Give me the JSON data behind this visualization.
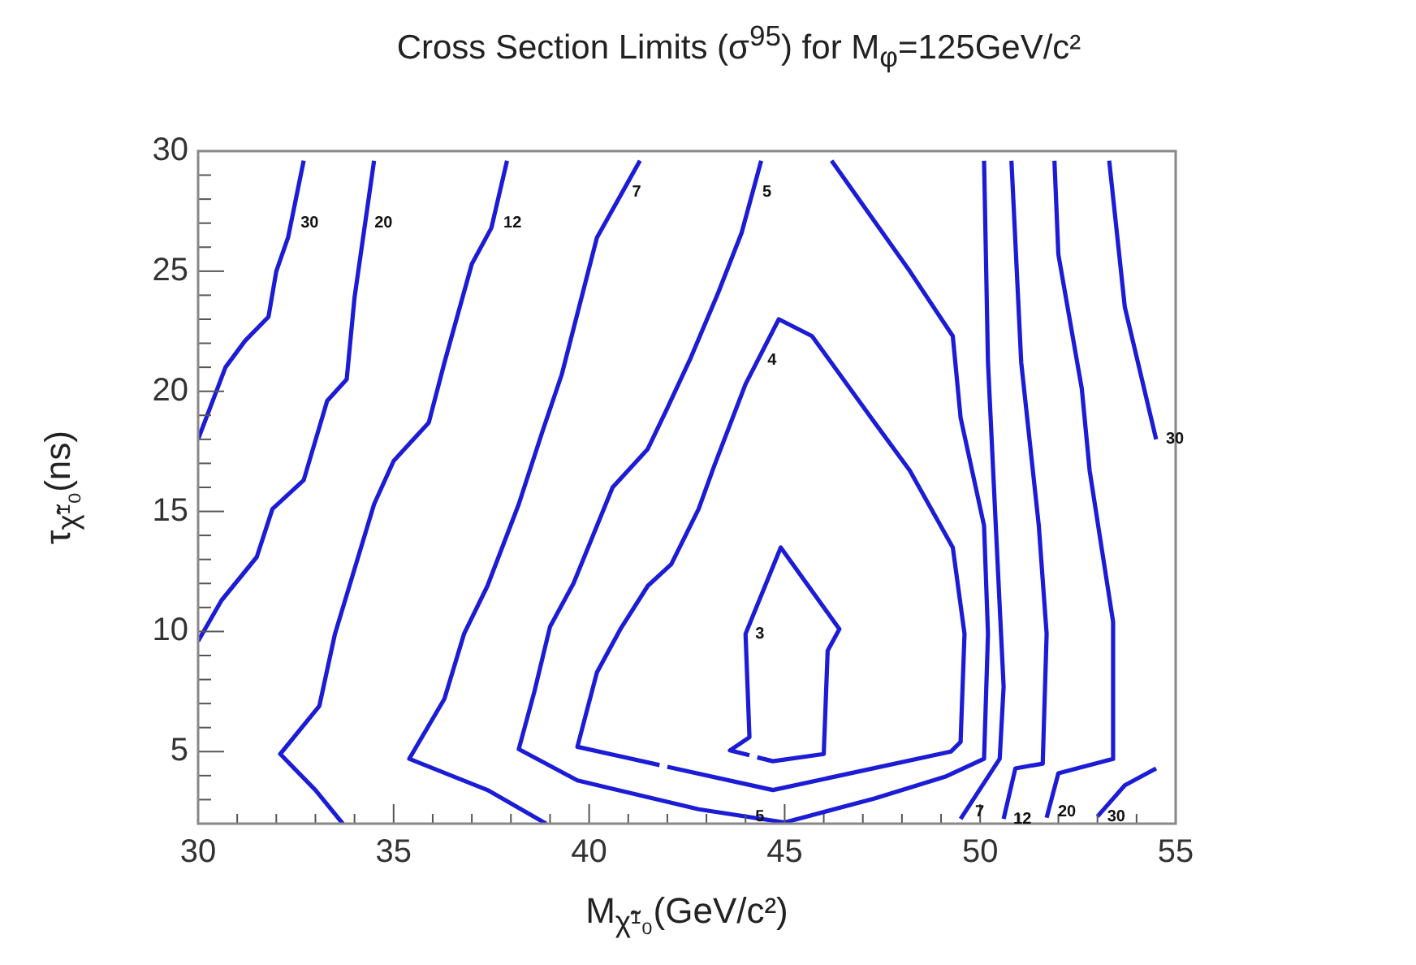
{
  "chart_data": {
    "type": "line",
    "title": "Cross Section Limits (σ$^{95}$) for M$_{φ}$=125GeV/c²",
    "xlabel": "M$_{χ̃¹₀}$(GeV/c²)",
    "ylabel": "τ$_{χ̃¹₀}$(ns)",
    "xlim": [
      30,
      55
    ],
    "ylim": [
      2,
      30
    ],
    "xticks": [
      30,
      {
        "value": 31,
        "label": null
      },
      {
        "value": 32,
        "label": null
      },
      {
        "value": 33,
        "label": null
      },
      {
        "value": 34,
        "label": null
      },
      35,
      {
        "value": 36,
        "label": null
      },
      {
        "value": 37,
        "label": null
      },
      {
        "value": 38,
        "label": null
      },
      {
        "value": 39,
        "label": null
      },
      40,
      {
        "value": 41,
        "label": null
      },
      {
        "value": 42,
        "label": null
      },
      {
        "value": 43,
        "label": null
      },
      {
        "value": 44,
        "label": null
      },
      45,
      {
        "value": 46,
        "label": null
      },
      {
        "value": 47,
        "label": null
      },
      {
        "value": 48,
        "label": null
      },
      {
        "value": 49,
        "label": null
      },
      50,
      {
        "value": 51,
        "label": null
      },
      {
        "value": 52,
        "label": null
      },
      {
        "value": 53,
        "label": null
      },
      {
        "value": 54,
        "label": null
      },
      55
    ],
    "yticks": [
      {
        "value": 3,
        "label": null
      },
      {
        "value": 4,
        "label": null
      },
      5,
      {
        "value": 6,
        "label": null
      },
      {
        "value": 7,
        "label": null
      },
      {
        "value": 8,
        "label": null
      },
      {
        "value": 9,
        "label": null
      },
      10,
      {
        "value": 11,
        "label": null
      },
      {
        "value": 12,
        "label": null
      },
      {
        "value": 13,
        "label": null
      },
      {
        "value": 14,
        "label": null
      },
      15,
      {
        "value": 16,
        "label": null
      },
      {
        "value": 17,
        "label": null
      },
      {
        "value": 18,
        "label": null
      },
      {
        "value": 19,
        "label": null
      },
      20,
      {
        "value": 21,
        "label": null
      },
      {
        "value": 22,
        "label": null
      },
      {
        "value": 23,
        "label": null
      },
      {
        "value": 24,
        "label": null
      },
      25,
      {
        "value": 26,
        "label": null
      },
      {
        "value": 27,
        "label": null
      },
      {
        "value": 28,
        "label": null
      },
      {
        "value": 29,
        "label": null
      },
      30
    ],
    "grid": false,
    "legend": false,
    "marker": "none",
    "line_style": "solid",
    "series": [
      {
        "color": "#1c1cd6",
        "x": [
          32.7,
          32.5,
          32.3,
          32.0,
          31.8,
          31.2,
          30.7,
          30.0
        ],
        "values": [
          29.6,
          28.0,
          26.4,
          25.0,
          23.1,
          22.1,
          21.0,
          18.0
        ]
      },
      {
        "color": "#1c1cd6",
        "x": [
          30.0,
          30.6,
          31.5,
          31.9,
          32.7,
          33.3,
          33.8,
          34.0,
          34.5
        ],
        "values": [
          9.6,
          11.3,
          13.1,
          15.1,
          16.3,
          19.6,
          20.5,
          23.9,
          29.6
        ]
      },
      {
        "color": "#1c1cd6",
        "x": [
          33.7,
          33.0,
          32.1,
          33.1,
          33.5,
          34.5,
          35.0,
          35.9,
          36.3,
          37.0,
          37.5,
          37.9
        ],
        "values": [
          2.0,
          3.4,
          4.9,
          6.9,
          9.9,
          15.3,
          17.1,
          18.7,
          21.2,
          25.3,
          26.8,
          29.6
        ]
      },
      {
        "color": "#1c1cd6",
        "x": [
          38.9,
          37.4,
          35.4,
          36.3,
          36.8,
          37.4,
          38.2,
          38.8,
          39.3,
          40.2,
          41.3
        ],
        "values": [
          2.0,
          3.4,
          4.7,
          7.2,
          9.9,
          11.9,
          15.3,
          18.3,
          20.7,
          26.4,
          29.6
        ]
      },
      {
        "color": "#1c1cd6",
        "x": [
          44.4,
          43.9,
          43.3,
          42.6,
          42.0,
          41.5,
          40.6,
          39.6,
          39.0,
          38.6,
          38.2,
          39.7,
          42.8,
          45.0,
          47.3,
          49.1,
          50.1,
          50.2,
          50.1,
          49.5,
          49.3,
          48.2,
          46.2
        ],
        "values": [
          29.6,
          26.6,
          24.1,
          21.4,
          19.3,
          17.6,
          16.0,
          12.0,
          10.2,
          7.5,
          5.1,
          3.8,
          2.6,
          2.05,
          3.05,
          3.95,
          4.7,
          9.9,
          14.4,
          18.9,
          22.3,
          25.0,
          29.6
        ]
      },
      {
        "color": "#1c1cd6",
        "x": [
          42.0,
          44.7,
          49.25,
          49.5,
          49.6,
          49.3,
          48.2,
          47.3,
          45.7,
          44.85,
          44.0,
          43.2,
          42.8,
          42.1,
          41.5,
          40.8,
          40.2,
          39.7,
          41.8
        ],
        "values": [
          4.37,
          3.4,
          5.0,
          5.4,
          9.9,
          13.5,
          16.7,
          18.7,
          22.3,
          23.0,
          20.3,
          16.9,
          15.1,
          12.8,
          11.9,
          10.1,
          8.3,
          5.2,
          4.44
        ]
      },
      {
        "color": "#1c1cd6",
        "x": [
          44.3,
          44.7,
          46.0,
          46.1,
          46.4,
          44.9,
          44.0,
          44.1,
          43.6,
          44.1
        ],
        "values": [
          4.76,
          4.6,
          4.9,
          9.2,
          10.1,
          13.5,
          9.9,
          5.6,
          5.05,
          4.85
        ]
      },
      {
        "color": "#1c1cd6",
        "x": [
          50.1,
          50.2,
          50.4,
          50.6,
          50.5,
          49.5
        ],
        "values": [
          29.6,
          21.2,
          14.4,
          7.7,
          4.7,
          2.2
        ]
      },
      {
        "color": "#1c1cd6",
        "x": [
          50.8,
          51.05,
          51.5,
          51.7,
          51.6,
          50.9,
          50.6
        ],
        "values": [
          29.6,
          21.2,
          14.4,
          9.9,
          4.5,
          4.3,
          2.2
        ]
      },
      {
        "color": "#1c1cd6",
        "x": [
          51.9,
          52.0,
          52.6,
          52.8,
          53.4,
          53.4,
          52.0,
          51.7
        ],
        "values": [
          29.6,
          25.7,
          20.1,
          16.7,
          10.4,
          4.7,
          4.1,
          2.25
        ]
      },
      {
        "color": "#1c1cd6",
        "x": [
          53.3,
          53.7,
          54.5
        ],
        "values": [
          29.6,
          23.5,
          18.0
        ]
      },
      {
        "color": "#1c1cd6",
        "x": [
          53.0,
          53.7,
          54.5
        ],
        "values": [
          2.3,
          3.6,
          4.3
        ]
      }
    ],
    "annotations": [
      {
        "text": "30",
        "x": 32.37,
        "y": 27.0
      },
      {
        "text": "20",
        "x": 34.26,
        "y": 27.0
      },
      {
        "text": "12",
        "x": 37.56,
        "y": 27.0
      },
      {
        "text": "7",
        "x": 40.85,
        "y": 28.3
      },
      {
        "text": "5",
        "x": 44.18,
        "y": 28.3
      },
      {
        "text": "4",
        "x": 44.31,
        "y": 21.3
      },
      {
        "text": "3",
        "x": 44.0,
        "y": 9.9
      },
      {
        "text": "30",
        "x": 54.5,
        "y": 18.0
      },
      {
        "text": "5",
        "x": 44.0,
        "y": 2.3
      },
      {
        "text": "7",
        "x": 49.62,
        "y": 2.5
      },
      {
        "text": "12",
        "x": 50.6,
        "y": 2.2
      },
      {
        "text": "20",
        "x": 51.74,
        "y": 2.5
      },
      {
        "text": "30",
        "x": 53.0,
        "y": 2.3
      }
    ]
  }
}
